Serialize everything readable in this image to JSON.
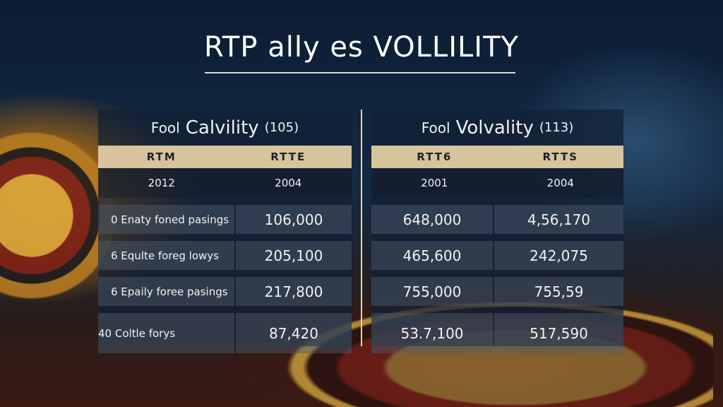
{
  "title": "RTP ally es VOLLILITY",
  "left": {
    "title_pre": "Fool",
    "title_main": "Calvility",
    "title_num": "(105)",
    "headers": [
      "RTM",
      "RTTE"
    ],
    "years": [
      "2012",
      "2004"
    ],
    "rows": [
      {
        "label": "0  Enaty foned pasings",
        "value": "106,000"
      },
      {
        "label": "6  Equlte foreg lowys",
        "value": "205,100"
      },
      {
        "label": "6  Epaily foree pasings",
        "value": "217,800"
      },
      {
        "label": "40  Coltle forys",
        "value": "87,420"
      }
    ]
  },
  "right": {
    "title_pre": "Fool",
    "title_main": "Volvality",
    "title_num": "(113)",
    "headers": [
      "RTT6",
      "RTTS"
    ],
    "years": [
      "2001",
      "2004"
    ],
    "rows": [
      [
        "648,000",
        "4,56,170"
      ],
      [
        "465,600",
        "242,075"
      ],
      [
        "755,000",
        "755,59"
      ],
      [
        "53.7,100",
        "517,590"
      ]
    ]
  },
  "colors": {
    "header_bg": "#d7c39c",
    "panel_bg": "#122034"
  }
}
